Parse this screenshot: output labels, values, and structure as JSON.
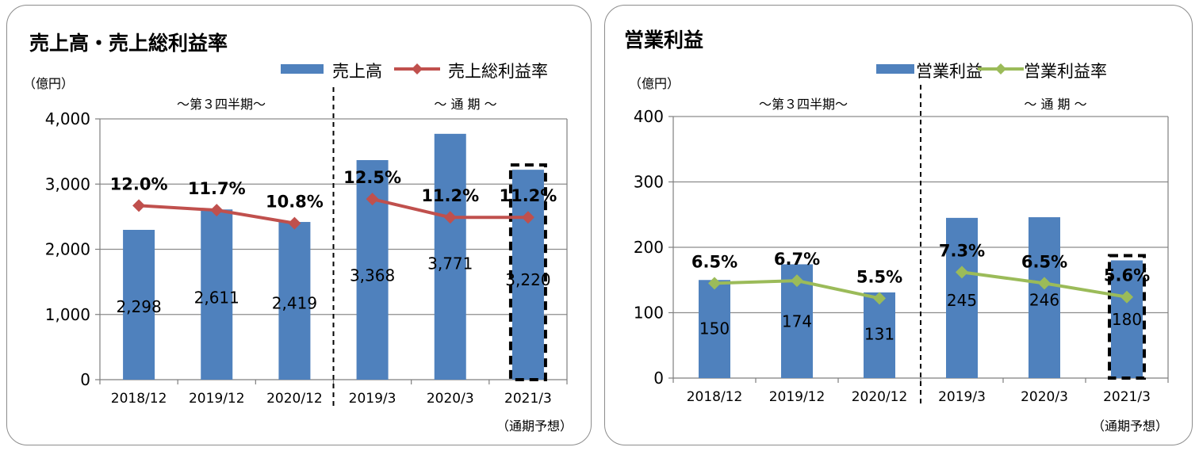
{
  "colors": {
    "bar": "#4f81bd",
    "line_left": "#c0504d",
    "line_right": "#9bbb59",
    "grid": "#8c8c8c",
    "border": "#8c8c8c"
  },
  "chart_data": [
    {
      "type": "bar",
      "title": "売上高・売上総利益率",
      "unit_label": "（億円）",
      "categories": [
        "2018/12",
        "2019/12",
        "2020/12",
        "2019/3",
        "2020/3",
        "2021/3"
      ],
      "series": [
        {
          "name": "売上高",
          "kind": "bar",
          "values": [
            2298,
            2611,
            2419,
            3368,
            3771,
            3220
          ],
          "labels": [
            "2,298",
            "2,611",
            "2,419",
            "3,368",
            "3,771",
            "3,220"
          ]
        },
        {
          "name": "売上総利益率",
          "kind": "line",
          "marker": "diamond",
          "values_pct": [
            12.0,
            11.7,
            10.8,
            12.5,
            11.2,
            11.2
          ],
          "labels": [
            "12.0%",
            "11.7%",
            "10.8%",
            "12.5%",
            "11.2%",
            "11.2%"
          ],
          "y_plot": [
            2670,
            2600,
            2400,
            2770,
            2490,
            2490
          ]
        }
      ],
      "ylim": [
        0,
        4000
      ],
      "yticks": [
        0,
        1000,
        2000,
        3000,
        4000
      ],
      "ytick_labels": [
        "0",
        "1,000",
        "2,000",
        "3,000",
        "4,000"
      ],
      "group_labels": [
        "～第３四半期～",
        "～ 通 期 ～"
      ],
      "forecast_note": "（通期予想）",
      "highlighted_category": "2021/3",
      "grid": true,
      "legend_position": "top-right"
    },
    {
      "type": "bar",
      "title": "営業利益",
      "unit_label": "（億円）",
      "categories": [
        "2018/12",
        "2019/12",
        "2020/12",
        "2019/3",
        "2020/3",
        "2021/3"
      ],
      "series": [
        {
          "name": "営業利益",
          "kind": "bar",
          "values": [
            150,
            174,
            131,
            245,
            246,
            180
          ],
          "labels": [
            "150",
            "174",
            "131",
            "245",
            "246",
            "180"
          ]
        },
        {
          "name": "営業利益率",
          "kind": "line",
          "marker": "diamond",
          "values_pct": [
            6.5,
            6.7,
            5.5,
            7.3,
            6.5,
            5.6
          ],
          "labels": [
            "6.5%",
            "6.7%",
            "5.5%",
            "7.3%",
            "6.5%",
            "5.6%"
          ],
          "y_plot": [
            145,
            149,
            122,
            162,
            145,
            124
          ]
        }
      ],
      "ylim": [
        0,
        400
      ],
      "yticks": [
        0,
        100,
        200,
        300,
        400
      ],
      "ytick_labels": [
        "0",
        "100",
        "200",
        "300",
        "400"
      ],
      "group_labels": [
        "～第３四半期～",
        "～ 通 期 ～"
      ],
      "forecast_note": "（通期予想）",
      "highlighted_category": "2021/3",
      "grid": true,
      "legend_position": "top-right"
    }
  ]
}
